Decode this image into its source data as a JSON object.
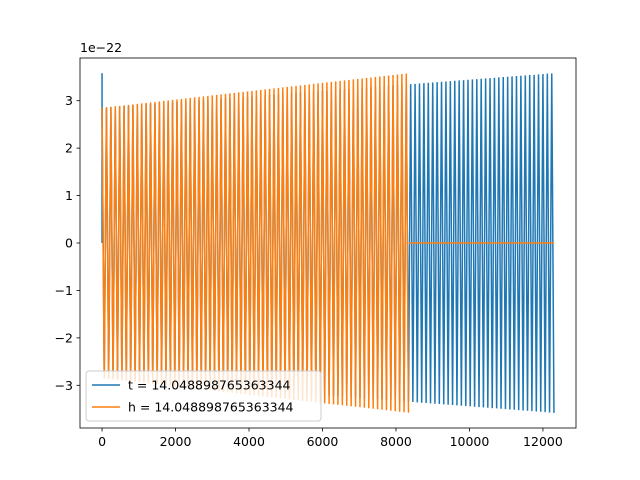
{
  "chart_data": {
    "type": "line",
    "title": "",
    "xlabel": "",
    "ylabel": "",
    "y_offset_text": "1e−22",
    "xlim": [
      -600,
      12900
    ],
    "ylim": [
      -3.9,
      3.9
    ],
    "x_ticks": [
      0,
      2000,
      4000,
      6000,
      8000,
      10000,
      12000
    ],
    "x_tick_labels": [
      "0",
      "2000",
      "4000",
      "6000",
      "8000",
      "10000",
      "12000"
    ],
    "y_ticks": [
      -3,
      -2,
      -1,
      0,
      1,
      2,
      3
    ],
    "y_tick_labels": [
      "−3",
      "−2",
      "−1",
      "0",
      "1",
      "2",
      "3"
    ],
    "grid": false,
    "legend_position": "lower-left",
    "series": [
      {
        "name": "t = 14.048898765363344",
        "color": "#1f77b4",
        "x_start": 0,
        "x_end": 12300,
        "spike_at_start": 3.58,
        "amplitude_start": 2.85,
        "amplitude_end": 3.58
      },
      {
        "name": "h = 14.048898765363344",
        "color": "#ff7f0e",
        "x_start": 0,
        "x_end": 8350,
        "amplitude_start": 2.85,
        "amplitude_end": 3.58,
        "flat_after_end": 0,
        "flat_until": 12300
      }
    ]
  }
}
